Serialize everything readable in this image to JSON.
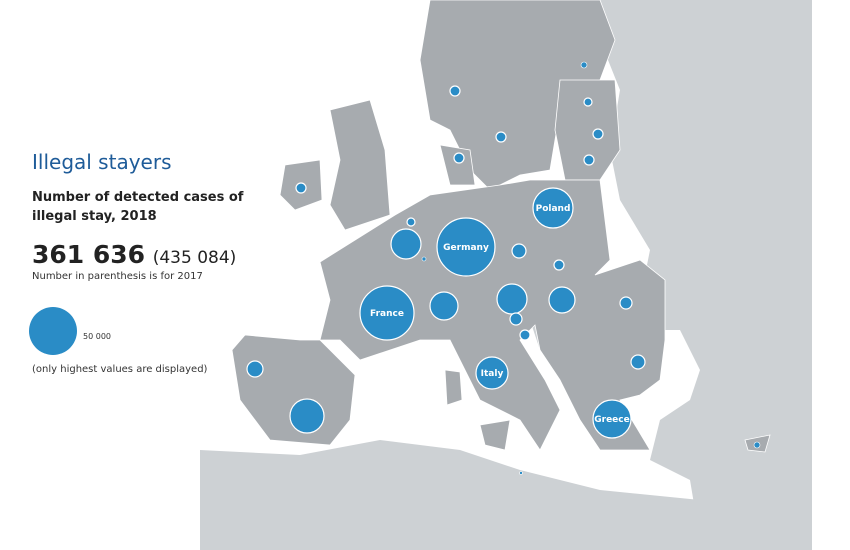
{
  "title": "Illegal stayers",
  "subtitle": "Number of detected cases of illegal stay, 2018",
  "total_2018": "361 636",
  "total_2017": "(435 084)",
  "note": "Number in parenthesis is for 2017",
  "legend": {
    "value": "50 000",
    "note": "(only highest values are displayed)"
  },
  "colors": {
    "bubble": "#2a8cc6",
    "eu_land": "#a7abaf",
    "non_eu_land": "#cdd1d4",
    "sea": "#ffffff"
  },
  "bubbles": [
    {
      "name": "Ireland",
      "label": "",
      "size": "small"
    },
    {
      "name": "Norway",
      "label": "",
      "size": "small"
    },
    {
      "name": "Sweden",
      "label": "",
      "size": "small"
    },
    {
      "name": "Finland",
      "label": "",
      "size": "small"
    },
    {
      "name": "Estonia",
      "label": "",
      "size": "small"
    },
    {
      "name": "Latvia",
      "label": "",
      "size": "small"
    },
    {
      "name": "Lithuania",
      "label": "",
      "size": "small"
    },
    {
      "name": "Denmark",
      "label": "",
      "size": "small"
    },
    {
      "name": "Netherlands",
      "label": "",
      "size": "small"
    },
    {
      "name": "Belgium",
      "label": "",
      "size": "medium"
    },
    {
      "name": "Luxembourg",
      "label": "",
      "size": "small"
    },
    {
      "name": "Germany",
      "label": "Germany",
      "size": "large"
    },
    {
      "name": "Poland",
      "label": "Poland",
      "size": "large"
    },
    {
      "name": "Czechia",
      "label": "",
      "size": "small"
    },
    {
      "name": "Slovakia",
      "label": "",
      "size": "small"
    },
    {
      "name": "Austria",
      "label": "",
      "size": "medium"
    },
    {
      "name": "Hungary",
      "label": "",
      "size": "medium"
    },
    {
      "name": "Slovenia",
      "label": "",
      "size": "small"
    },
    {
      "name": "Croatia",
      "label": "",
      "size": "small"
    },
    {
      "name": "Switzerland",
      "label": "",
      "size": "medium"
    },
    {
      "name": "France",
      "label": "France",
      "size": "large"
    },
    {
      "name": "Romania",
      "label": "",
      "size": "small"
    },
    {
      "name": "Bulgaria",
      "label": "",
      "size": "small"
    },
    {
      "name": "Portugal",
      "label": "",
      "size": "small"
    },
    {
      "name": "Spain",
      "label": "",
      "size": "medium"
    },
    {
      "name": "Italy",
      "label": "Italy",
      "size": "medium"
    },
    {
      "name": "Greece",
      "label": "Greece",
      "size": "large"
    },
    {
      "name": "Malta",
      "label": "",
      "size": "small"
    },
    {
      "name": "Cyprus",
      "label": "",
      "size": "small"
    }
  ]
}
